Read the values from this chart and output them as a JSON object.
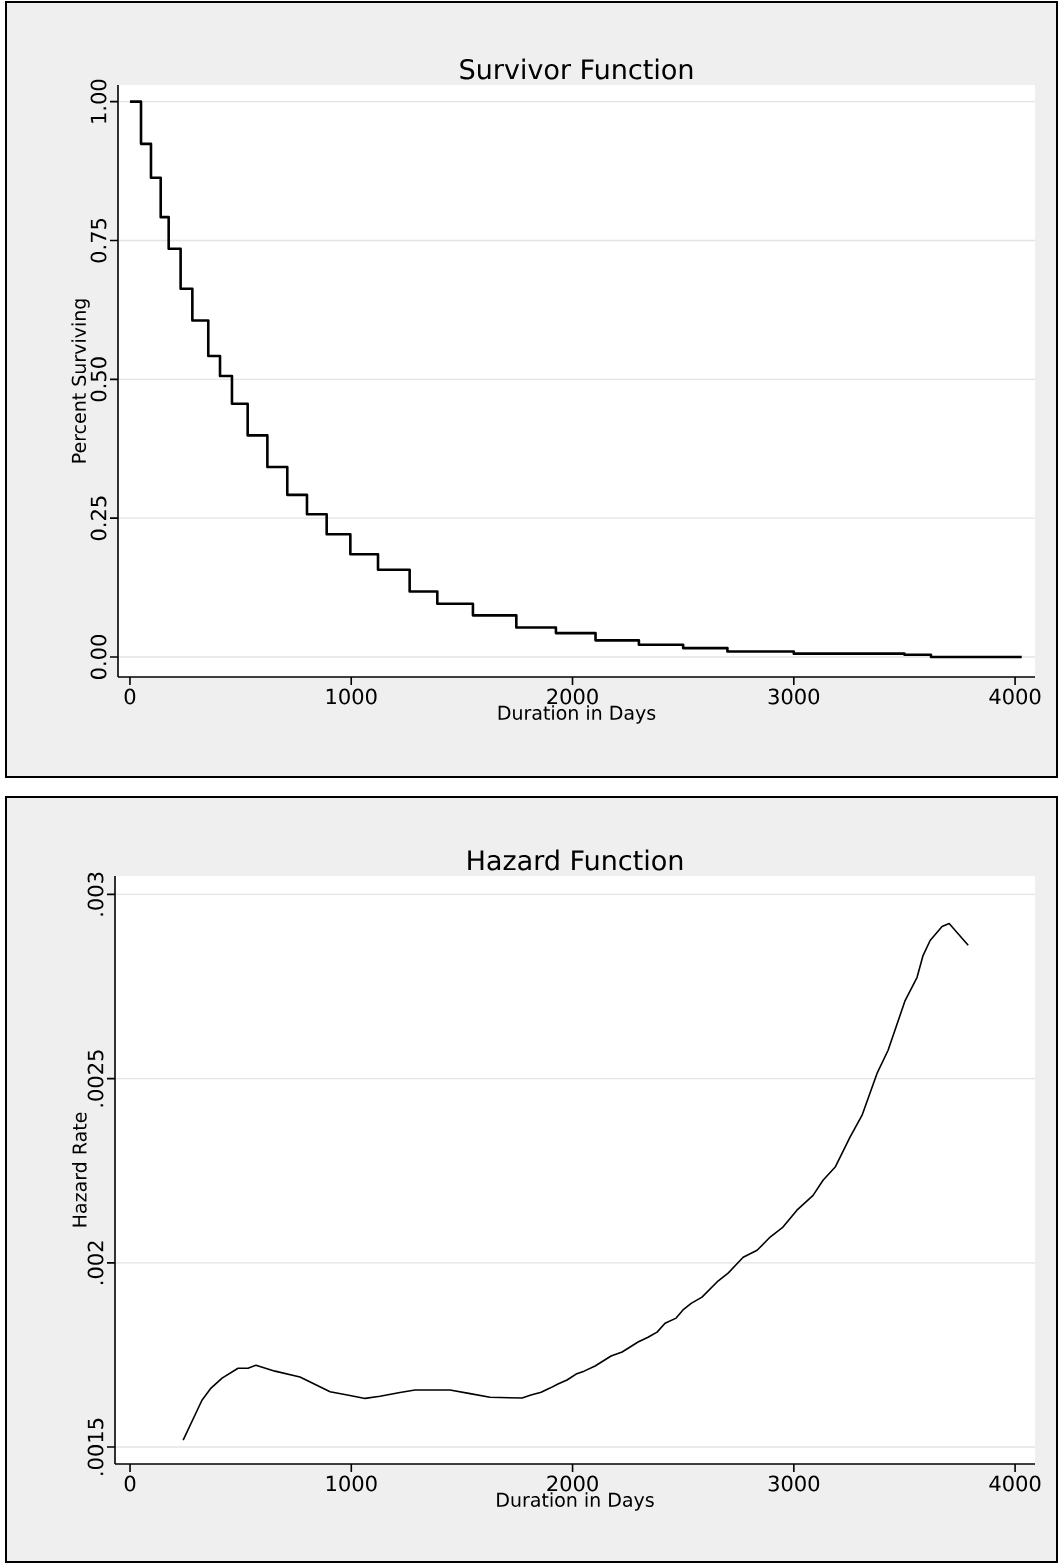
{
  "chart_data": [
    {
      "type": "step",
      "title": "Survivor Function",
      "xlabel": "Duration in Days",
      "ylabel": "Percent Surviving",
      "color": "#000000",
      "grid": "y",
      "x": [
        0,
        50,
        95,
        139,
        175,
        229,
        282,
        354,
        407,
        461,
        532,
        621,
        711,
        800,
        889,
        996,
        1121,
        1264,
        1389,
        1550,
        1746,
        1925,
        2104,
        2300,
        2500,
        2700,
        3000,
        3500,
        3620,
        4030
      ],
      "values": [
        1.0,
        0.924,
        0.863,
        0.792,
        0.735,
        0.663,
        0.606,
        0.542,
        0.506,
        0.456,
        0.399,
        0.342,
        0.292,
        0.257,
        0.221,
        0.185,
        0.157,
        0.118,
        0.096,
        0.075,
        0.053,
        0.043,
        0.03,
        0.022,
        0.016,
        0.01,
        0.006,
        0.004,
        0.0,
        0.0
      ],
      "xlim": [
        -54,
        4090
      ],
      "ylim": [
        -0.036,
        1.03
      ],
      "xticks": [
        0,
        1000,
        2000,
        3000,
        4000
      ],
      "yticks": [
        {
          "value": 0,
          "label": "0.00"
        },
        {
          "value": 0.25,
          "label": "0.25"
        },
        {
          "value": 0.5,
          "label": "0.50"
        },
        {
          "value": 0.75,
          "label": "0.75"
        },
        {
          "value": 1,
          "label": "1.00"
        }
      ]
    },
    {
      "type": "line",
      "title": "Hazard Function",
      "xlabel": "Duration in Days",
      "ylabel": "Hazard Rate",
      "color": "#000000",
      "grid": "y",
      "x": [
        240,
        325,
        366,
        416,
        488,
        533,
        569,
        655,
        768,
        904,
        994,
        1062,
        1130,
        1220,
        1288,
        1446,
        1537,
        1627,
        1772,
        1812,
        1858,
        1898,
        1934,
        1975,
        2016,
        2052,
        2102,
        2174,
        2224,
        2296,
        2341,
        2382,
        2418,
        2468,
        2499,
        2536,
        2585,
        2653,
        2703,
        2771,
        2834,
        2893,
        2951,
        3014,
        3087,
        3132,
        3187,
        3254,
        3308,
        3376,
        3426,
        3503,
        3557,
        3584,
        3616,
        3670,
        3702,
        3788
      ],
      "values": [
        0.001519,
        0.001627,
        0.00166,
        0.001687,
        0.001714,
        0.001714,
        0.001722,
        0.001706,
        0.00169,
        0.00165,
        0.00164,
        0.001632,
        0.001638,
        0.001648,
        0.001655,
        0.001655,
        0.001645,
        0.001635,
        0.001633,
        0.001641,
        0.001649,
        0.00166,
        0.001671,
        0.001682,
        0.001698,
        0.001706,
        0.00172,
        0.001747,
        0.001758,
        0.001785,
        0.001798,
        0.001812,
        0.001836,
        0.00185,
        0.001872,
        0.00189,
        0.001907,
        0.001948,
        0.001972,
        0.002015,
        0.002034,
        0.00207,
        0.002097,
        0.002143,
        0.002183,
        0.002224,
        0.00226,
        0.002341,
        0.0024,
        0.002514,
        0.002577,
        0.002712,
        0.002775,
        0.002834,
        0.002875,
        0.002913,
        0.002921,
        0.002862
      ],
      "xlim": [
        -68,
        4090
      ],
      "ylim": [
        0.001454,
        0.00305
      ],
      "xticks": [
        0,
        1000,
        2000,
        3000,
        4000
      ],
      "yticks": [
        {
          "value": 0.0015,
          "label": ".0015"
        },
        {
          "value": 0.002,
          "label": ".002"
        },
        {
          "value": 0.0025,
          "label": ".0025"
        },
        {
          "value": 0.003,
          "label": ".003"
        }
      ]
    }
  ]
}
